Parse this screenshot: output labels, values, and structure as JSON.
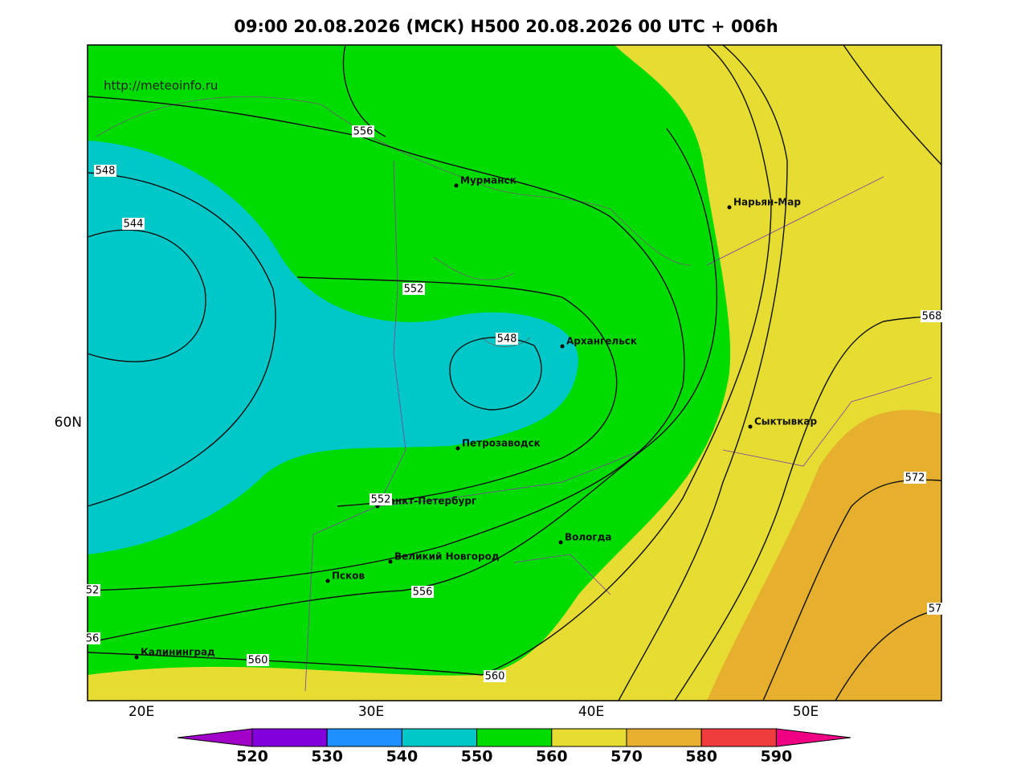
{
  "title": "09:00 20.08.2026 (МСК) H500  20.08.2026 00 UTC + 006h",
  "source": "http://meteoinfo.ru",
  "cities": [
    "Мурманск",
    "Архангельск",
    "Нарьян-Мар",
    "Сыктывкар",
    "Петрозаводск",
    "Санкт-Петербург",
    "Вологда",
    "Великий Новгород",
    "Псков",
    "Калининград"
  ],
  "contour_labels": [
    "556",
    "548",
    "544",
    "552",
    "548",
    "568",
    "572",
    "552",
    "52",
    "556",
    "56",
    "560",
    "560",
    "57"
  ],
  "lon_labels": [
    "20E",
    "30E",
    "40E",
    "50E"
  ],
  "lat_labels": [
    "60N"
  ],
  "colorbar": {
    "labels": [
      520,
      530,
      540,
      550,
      560,
      570,
      580,
      590
    ],
    "colors": [
      "#a000c8",
      "#8200dc",
      "#1e90ff",
      "#00c8c8",
      "#00dc00",
      "#e6dc32",
      "#e6af2d",
      "#f03c3c",
      "#f00082"
    ]
  }
}
